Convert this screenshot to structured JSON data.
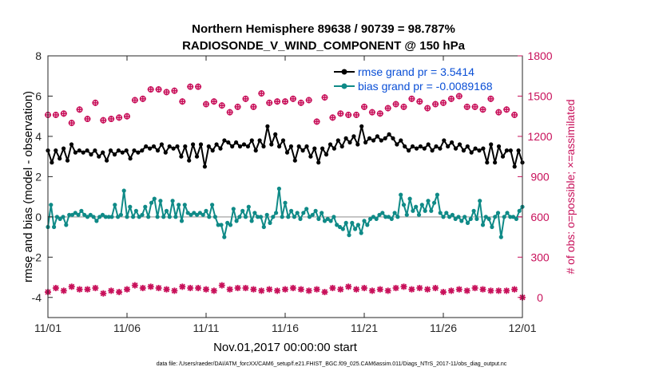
{
  "chart_data": {
    "type": "line",
    "title_line1": "Northern Hemisphere 89638 / 90739 = 98.787%",
    "title_line2": "RADIOSONDE_V_WIND_COMPONENT @ 150 hPa",
    "xlabel": "Nov.01,2017 00:00:00 start",
    "ylabel_left": "rmse and bias (model - observation)",
    "ylabel_right": "# of obs: o=possible; ×=assimilated",
    "footer": "data file: /Users/raeder/DAI/ATM_forcXX/CAM6_setup/f.e21.FHIST_BGC.f09_025.CAM6assim.011/Diags_NTrS_2017-11/obs_diag_output.nc",
    "x_ticks": [
      "11/01",
      "11/06",
      "11/11",
      "11/16",
      "11/21",
      "11/26",
      "12/01"
    ],
    "x_tick_days": [
      0,
      5,
      10,
      15,
      20,
      25,
      30
    ],
    "x_range_days": [
      0,
      30
    ],
    "ylim_left": [
      -5,
      8
    ],
    "y_ticks_left": [
      "8",
      "6",
      "4",
      "2",
      "0",
      "-2",
      "-4"
    ],
    "y_tick_values_left": [
      8,
      6,
      4,
      2,
      0,
      -2,
      -4
    ],
    "ylim_right": [
      -150,
      1800
    ],
    "y_ticks_right": [
      "1800",
      "1500",
      "1200",
      "900",
      "600",
      "300",
      "0"
    ],
    "y_tick_values_right": [
      1800,
      1500,
      1200,
      900,
      600,
      300,
      0
    ],
    "zero_line": 0,
    "legend": [
      {
        "label": "rmse grand pr = 3.5414",
        "color": "#000000"
      },
      {
        "label": "bias grand pr = -0.0089168",
        "color": "#0f8a87"
      }
    ],
    "colors": {
      "rmse": "#000000",
      "bias": "#0f8a87",
      "obs": "#c8105a",
      "zero": "#b3b3b3"
    },
    "rmse": [
      3.3,
      2.7,
      3.3,
      2.9,
      3.4,
      2.8,
      3.6,
      3.2,
      3.3,
      3.2,
      3.3,
      3.1,
      3.3,
      3.0,
      3.2,
      2.8,
      3.3,
      3.1,
      3.3,
      3.2,
      3.3,
      2.9,
      3.3,
      3.2,
      3.3,
      3.5,
      3.4,
      3.5,
      3.3,
      3.6,
      3.2,
      3.5,
      3.4,
      3.5,
      3.0,
      3.5,
      2.8,
      3.6,
      3.0,
      3.6,
      2.5,
      3.5,
      3.3,
      3.6,
      3.4,
      3.8,
      3.7,
      3.5,
      3.7,
      3.5,
      3.6,
      3.5,
      3.8,
      3.3,
      3.8,
      3.5,
      4.5,
      3.6,
      4.1,
      3.5,
      3.8,
      3.2,
      3.5,
      2.8,
      3.5,
      3.3,
      3.5,
      3.0,
      3.4,
      2.7,
      3.4,
      3.1,
      3.6,
      3.4,
      3.8,
      3.5,
      3.9,
      3.7,
      4.0,
      3.6,
      4.5,
      3.7,
      3.9,
      3.8,
      4.0,
      3.8,
      3.9,
      4.1,
      3.9,
      3.6,
      3.8,
      3.5,
      3.3,
      3.5,
      3.4,
      3.5,
      3.4,
      3.6,
      3.3,
      3.5,
      3.4,
      3.8,
      3.5,
      3.7,
      3.4,
      3.6,
      3.3,
      3.5,
      3.2,
      3.4,
      3.3,
      3.4,
      2.7,
      3.6,
      2.7,
      3.5,
      3.0,
      3.3,
      3.3,
      2.5,
      3.3,
      2.7
    ],
    "bias": [
      -0.5,
      0.6,
      -0.5,
      0.0,
      -0.1,
      0.0,
      -0.4,
      0.1,
      0.1,
      0.2,
      0.1,
      0.3,
      0.1,
      0.0,
      0.1,
      0.0,
      -0.2,
      0.0,
      0.1,
      0.0,
      0.0,
      0.0,
      0.6,
      0.0,
      0.1,
      1.3,
      0.0,
      0.5,
      0.0,
      0.3,
      0.0,
      0.1,
      0.5,
      0.0,
      0.7,
      0.9,
      0.0,
      0.8,
      0.0,
      0.3,
      0.0,
      0.8,
      0.0,
      0.6,
      -0.2,
      0.6,
      0.2,
      0.1,
      0.2,
      0.1,
      0.2,
      0.1,
      0.3,
      0.0,
      0.6,
      0.0,
      -0.4,
      -0.4,
      -1.0,
      -0.3,
      -0.4,
      0.4,
      -0.2,
      0.0,
      0.3,
      0.0,
      0.5,
      -0.2,
      0.2,
      0.0,
      0.0,
      -0.5,
      0.1,
      -0.3,
      0.0,
      0.2,
      1.4,
      0.0,
      0.7,
      0.0,
      0.3,
      0.0,
      0.2,
      -0.1,
      0.2,
      0.4,
      0.0,
      0.1,
      0.3,
      -0.1,
      0.2,
      -0.2,
      -0.1,
      -0.2,
      0.0,
      -0.4,
      -0.5,
      -0.6,
      -0.3,
      -0.9,
      -0.3,
      -0.6,
      -0.4,
      -0.8,
      -0.2,
      -0.4,
      -0.1,
      0.0,
      -0.1,
      0.1,
      0.2,
      0.0,
      0.0,
      -0.1,
      0.2,
      0.0,
      1.1,
      0.6,
      0.1,
      0.9,
      0.3,
      0.5,
      0.1,
      0.6,
      0.3,
      0.8,
      0.3,
      0.7,
      1.1,
      0.2,
      0.0,
      0.2,
      0.0,
      0.1,
      -0.1,
      0.0,
      -0.2,
      0.0,
      -0.3,
      -0.1,
      0.3,
      -0.1,
      0.8,
      -0.4,
      0.0,
      -0.1,
      -0.5,
      0.0,
      0.2,
      -1.0,
      0.0,
      0.2,
      0.0,
      0.0,
      -0.1,
      0.3,
      0.5
    ],
    "obs_possible_x": [
      0,
      0.5,
      1,
      1.5,
      2,
      2.5,
      3,
      3.5,
      4,
      4.5,
      5,
      5.5,
      6,
      6.5,
      7,
      7.5,
      8,
      8.5,
      9,
      9.5,
      10,
      10.5,
      11,
      11.5,
      12,
      12.5,
      13,
      13.5,
      14,
      14.5,
      15,
      15.5,
      16,
      16.5,
      17,
      17.5,
      18,
      18.5,
      19,
      19.5,
      20,
      20.5,
      21,
      21.5,
      22,
      22.5,
      23,
      23.5,
      24,
      24.5,
      25,
      25.5,
      26,
      26.5,
      27,
      27.5,
      28,
      28.5,
      29,
      29.5
    ],
    "obs_possible": [
      1360,
      1360,
      1370,
      1300,
      1400,
      1330,
      1450,
      1320,
      1330,
      1340,
      1350,
      1470,
      1480,
      1550,
      1550,
      1530,
      1540,
      1460,
      1570,
      1570,
      1440,
      1460,
      1430,
      1380,
      1420,
      1480,
      1420,
      1520,
      1450,
      1460,
      1460,
      1480,
      1450,
      1470,
      1310,
      1490,
      1340,
      1370,
      1360,
      1360,
      1420,
      1380,
      1370,
      1410,
      1440,
      1420,
      1480,
      1460,
      1410,
      1440,
      1450,
      1480,
      1500,
      1420,
      1420,
      1400,
      1480,
      1380,
      1400,
      1360
    ],
    "obs_assimilated_x": [
      0,
      0.5,
      1,
      1.5,
      2,
      2.5,
      3,
      3.5,
      4,
      4.5,
      5,
      5.5,
      6,
      6.5,
      7,
      7.5,
      8,
      8.5,
      9,
      9.5,
      10,
      10.5,
      11,
      11.5,
      12,
      12.5,
      13,
      13.5,
      14,
      14.5,
      15,
      15.5,
      16,
      16.5,
      17,
      17.5,
      18,
      18.5,
      19,
      19.5,
      20,
      20.5,
      21,
      21.5,
      22,
      22.5,
      23,
      23.5,
      24,
      24.5,
      25,
      25.5,
      26,
      26.5,
      27,
      27.5,
      28,
      28.5,
      29,
      29.5,
      30
    ],
    "obs_assimilated": [
      40,
      70,
      50,
      80,
      60,
      60,
      70,
      30,
      50,
      40,
      60,
      90,
      70,
      80,
      70,
      60,
      50,
      80,
      70,
      70,
      60,
      50,
      90,
      60,
      70,
      70,
      60,
      50,
      60,
      50,
      60,
      70,
      60,
      50,
      60,
      40,
      70,
      60,
      80,
      60,
      70,
      50,
      60,
      50,
      70,
      80,
      60,
      70,
      60,
      70,
      40,
      50,
      60,
      50,
      70,
      60,
      50,
      50,
      50,
      60,
      0
    ]
  }
}
